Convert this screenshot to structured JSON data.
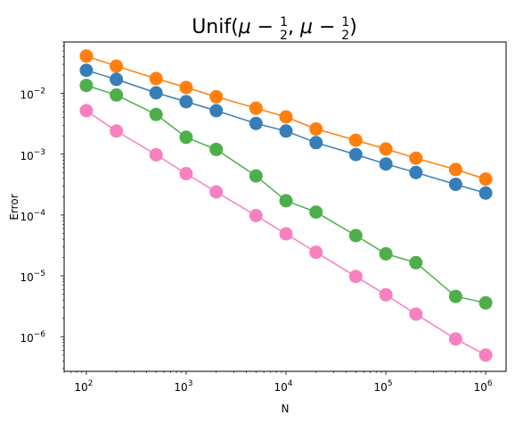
{
  "chart_data": {
    "type": "line",
    "title": "Unif(μ − 1/2, μ − 1/2)",
    "title_parts": {
      "prefix": "Unif",
      "open": "(",
      "mu1": "μ",
      "minus1": " − ",
      "num1": "1",
      "den1": "2",
      "comma": ", ",
      "mu2": "μ",
      "minus2": " − ",
      "num2": "1",
      "den2": "2",
      "close": ")"
    },
    "xlabel": "N",
    "ylabel": "Error",
    "xscale": "log",
    "yscale": "log",
    "xlim": [
      60,
      1600000
    ],
    "ylim": [
      2.7e-07,
      0.07
    ],
    "grid": false,
    "xticks": [
      {
        "base": "10",
        "exp": "2",
        "value": 100
      },
      {
        "base": "10",
        "exp": "3",
        "value": 1000
      },
      {
        "base": "10",
        "exp": "4",
        "value": 10000
      },
      {
        "base": "10",
        "exp": "5",
        "value": 100000
      },
      {
        "base": "10",
        "exp": "6",
        "value": 1000000
      }
    ],
    "yticks": [
      {
        "base": "10",
        "exp": "−6",
        "value": 1e-06
      },
      {
        "base": "10",
        "exp": "−5",
        "value": 1e-05
      },
      {
        "base": "10",
        "exp": "−4",
        "value": 0.0001
      },
      {
        "base": "10",
        "exp": "−3",
        "value": 0.001
      },
      {
        "base": "10",
        "exp": "−2",
        "value": 0.01
      }
    ],
    "x": [
      100,
      200,
      500,
      1000,
      2000,
      5000,
      10000,
      20000,
      50000,
      100000,
      200000,
      500000,
      1000000
    ],
    "series": [
      {
        "color": "#ff7f0e",
        "values": [
          0.041,
          0.028,
          0.0175,
          0.0125,
          0.0088,
          0.0057,
          0.0041,
          0.0026,
          0.0017,
          0.00122,
          0.00086,
          0.00056,
          0.00039
        ]
      },
      {
        "color": "#377eb8",
        "values": [
          0.024,
          0.017,
          0.0102,
          0.0073,
          0.0052,
          0.0032,
          0.0024,
          0.00155,
          0.00099,
          0.00069,
          0.0005,
          0.00032,
          0.00023
        ]
      },
      {
        "color": "#4daf4a",
        "values": [
          0.0135,
          0.0094,
          0.0045,
          0.0019,
          0.0012,
          0.00044,
          0.000172,
          0.000112,
          4.6e-05,
          2.3e-05,
          1.65e-05,
          4.6e-06,
          3.6e-06
        ]
      },
      {
        "color": "#f781bf",
        "values": [
          0.0052,
          0.0024,
          0.00098,
          0.00048,
          0.00024,
          9.8e-05,
          4.9e-05,
          2.45e-05,
          9.8e-06,
          4.9e-06,
          2.35e-06,
          9.2e-07,
          5e-07
        ]
      }
    ]
  }
}
